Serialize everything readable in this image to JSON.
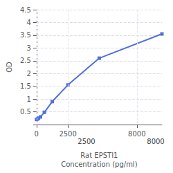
{
  "chart_data": {
    "type": "line",
    "ylabel": "OD",
    "xlabel": "Rat EPSTI1\nConcentration (pg/ml)",
    "x": [
      0,
      78,
      156,
      313,
      625,
      1250,
      2500,
      5000,
      10000
    ],
    "values": [
      0.2,
      0.22,
      0.25,
      0.3,
      0.48,
      0.9,
      1.55,
      2.6,
      3.55
    ],
    "marker": "square",
    "xlim": [
      0,
      10000
    ],
    "xticks": [
      0,
      2500,
      8000
    ],
    "ylim": [
      0,
      4.5
    ],
    "yticks": [
      0.5,
      1,
      1.5,
      2,
      2.5,
      3,
      3.5,
      4,
      4.5
    ],
    "grid": true,
    "annotations": [
      "2500",
      "8000"
    ]
  }
}
